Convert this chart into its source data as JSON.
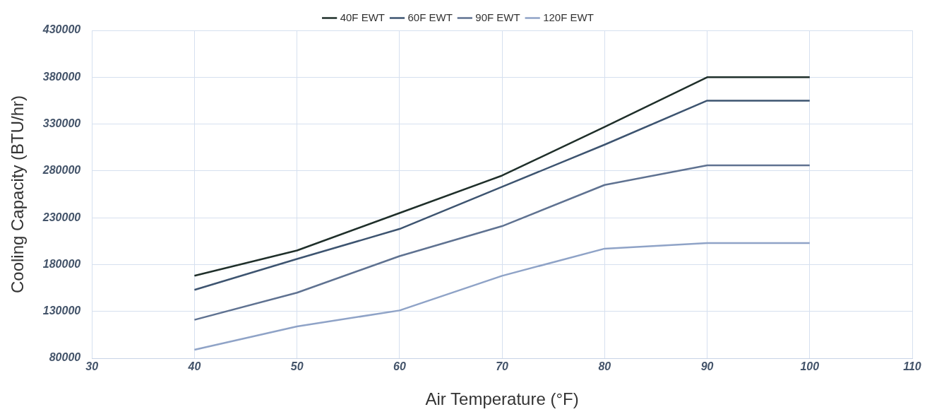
{
  "chart_data": {
    "type": "line",
    "xlabel": "Air Temperature (°F)",
    "ylabel": "Cooling Capacity (BTU/hr)",
    "x": [
      40,
      50,
      60,
      70,
      80,
      90,
      100
    ],
    "series": [
      {
        "name": "40F EWT",
        "color": "#1f2f2a",
        "values": [
          168000,
          195000,
          235000,
          275000,
          327000,
          380000,
          380000
        ]
      },
      {
        "name": "60F EWT",
        "color": "#3d5470",
        "values": [
          153000,
          186000,
          218000,
          263000,
          308000,
          355000,
          355000
        ]
      },
      {
        "name": "90F EWT",
        "color": "#5f7291",
        "values": [
          121000,
          150000,
          189000,
          221000,
          265000,
          286000,
          286000
        ]
      },
      {
        "name": "120F EWT",
        "color": "#8fa3c7",
        "values": [
          89000,
          114000,
          131000,
          168000,
          197000,
          203000,
          203000
        ]
      }
    ],
    "xlim": [
      30,
      110
    ],
    "xticks": [
      30,
      40,
      50,
      60,
      70,
      80,
      90,
      100,
      110
    ],
    "ylim": [
      80000,
      430000
    ],
    "yticks": [
      80000,
      130000,
      180000,
      230000,
      280000,
      330000,
      380000,
      430000
    ],
    "grid": true,
    "legend": "top",
    "marker": "none",
    "line_style": "solid"
  }
}
